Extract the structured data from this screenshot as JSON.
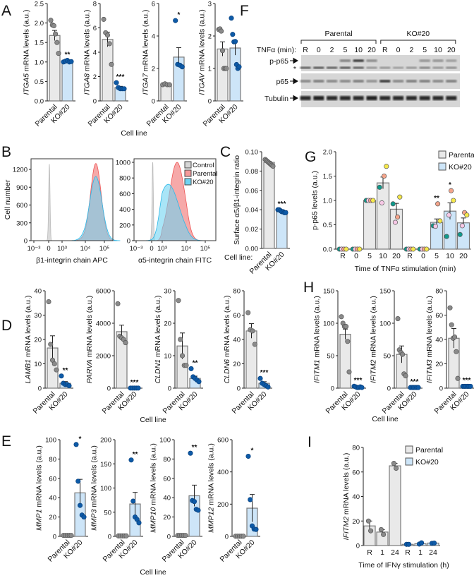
{
  "panels": {
    "A": {
      "letter": "A",
      "xlabel": "Cell line"
    },
    "B": {
      "letter": "B"
    },
    "C": {
      "letter": "C"
    },
    "D": {
      "letter": "D",
      "xlabel": "Cell line"
    },
    "E": {
      "letter": "E",
      "xlabel": "Cell line"
    },
    "F": {
      "letter": "F"
    },
    "G": {
      "letter": "G"
    },
    "H": {
      "letter": "H",
      "xlabel": "Cell line"
    },
    "I": {
      "letter": "I"
    }
  },
  "colors": {
    "parental_bar": "#e9e9e9",
    "ko_bar": "#cde5f8",
    "parental_point": "#8a8a8a",
    "ko_point": "#0d5aa7",
    "hist_control": "#d6d6d6",
    "hist_parental": "#f59a9a",
    "hist_ko": "#6fd3f2"
  },
  "chart_data": [
    {
      "id": "ITGA5",
      "panel": "A",
      "type": "bar",
      "ylabel_gene": "ITGA5",
      "ylabel_rest": " mRNA levels (a.u.)",
      "yticks": [
        "0.0",
        "0.5",
        "1.0",
        "1.5",
        "2.0",
        "2.5"
      ],
      "ylim": [
        0,
        2.5
      ],
      "categories": [
        "Parental",
        "KO#20"
      ],
      "values": [
        1.68,
        1.02
      ],
      "sem": [
        0.13,
        0.01
      ],
      "points": [
        [
          2.07,
          1.95,
          1.93,
          1.72,
          1.5,
          1.22
        ],
        [
          1.0,
          1.02,
          1.04,
          1.0,
          1.01
        ]
      ],
      "significance": [
        "",
        "**"
      ]
    },
    {
      "id": "ITGA8",
      "panel": "A",
      "type": "bar",
      "ylabel_gene": "ITGA8",
      "ylabel_rest": " mRNA levels (a.u.)",
      "yticks": [
        "0",
        "2",
        "4",
        "6",
        "8"
      ],
      "ylim": [
        0,
        8
      ],
      "categories": [
        "Parental",
        "KO#20"
      ],
      "values": [
        5.05,
        1.1
      ],
      "sem": [
        0.6,
        0.1
      ],
      "points": [
        [
          6.7,
          5.6,
          5.4,
          4.7,
          3.0
        ],
        [
          1.5,
          1.1,
          1.0,
          1.0,
          1.0
        ]
      ],
      "significance": [
        "",
        "***"
      ]
    },
    {
      "id": "ITGA7",
      "panel": "A",
      "type": "bar",
      "ylabel_gene": "ITGA7",
      "ylabel_rest": " mRNA levels (a.u.)",
      "yticks": [
        "0",
        "2",
        "4",
        "6"
      ],
      "ylim": [
        0,
        6
      ],
      "categories": [
        "Parental",
        "KO#20"
      ],
      "values": [
        1.0,
        2.7
      ],
      "sem": [
        0.02,
        0.58
      ],
      "points": [
        [
          1.0,
          1.05,
          1.0,
          1.0
        ],
        [
          4.95,
          2.25,
          2.2,
          2.1
        ]
      ],
      "significance": [
        "",
        "*"
      ]
    },
    {
      "id": "ITGAV",
      "panel": "A",
      "type": "bar",
      "ylabel_gene": "ITGAV",
      "ylabel_rest": " mRNA levels (a.u.)",
      "yticks": [
        "0",
        "1",
        "2",
        "3"
      ],
      "ylim": [
        0,
        3
      ],
      "categories": [
        "Parental",
        "KO#20"
      ],
      "values": [
        1.6,
        1.63
      ],
      "sem": [
        0.22,
        0.22
      ],
      "points": [
        [
          2.2,
          2.22,
          2.15,
          1.55,
          1.0,
          1.0,
          1.0
        ],
        [
          2.55,
          2.05,
          1.82,
          1.83,
          1.12,
          1.0,
          1.05
        ]
      ],
      "significance": [
        "",
        ""
      ]
    },
    {
      "id": "C",
      "panel": "C",
      "type": "bar",
      "ylabel_gene": "",
      "ylabel_rest": "Surface α5/β1-integrin ratio",
      "xlabel": "Cell line:",
      "yticks": [
        "0.00",
        "0.02",
        "0.04",
        "0.06",
        "0.08",
        "0.10"
      ],
      "ylim": [
        0,
        0.1
      ],
      "categories": [
        "Parental",
        "KO#20"
      ],
      "values": [
        0.089,
        0.039
      ],
      "sem": [
        0.001,
        0.0005
      ],
      "points": [
        [
          0.092,
          0.091,
          0.09,
          0.089,
          0.088,
          0.087,
          0.086,
          0.085
        ],
        [
          0.04,
          0.04,
          0.039,
          0.038,
          0.038,
          0.037,
          0.037
        ]
      ],
      "significance": [
        "",
        "***"
      ]
    },
    {
      "id": "LAMB1",
      "panel": "D",
      "type": "bar",
      "ylabel_gene": "LAMB1",
      "ylabel_rest": " mRNA levels (a.u.)",
      "yticks": [
        "0",
        "10",
        "20",
        "30",
        "40"
      ],
      "ylim": [
        0,
        40
      ],
      "categories": [
        "Parental",
        "KO#20"
      ],
      "values": [
        16.5,
        2.0
      ],
      "sem": [
        5.0,
        0.7
      ],
      "points": [
        [
          35.5,
          18,
          11.5,
          10,
          7.5
        ],
        [
          5,
          2,
          1.5,
          1.5,
          1
        ]
      ],
      "significance": [
        "",
        "**"
      ]
    },
    {
      "id": "PARVA",
      "panel": "D",
      "type": "bar",
      "ylabel_gene": "PARVA",
      "ylabel_rest": " mRNA levels (a.u.)",
      "yticks": [
        "0",
        "2000",
        "4000",
        "6000"
      ],
      "ylim": [
        0,
        6000
      ],
      "categories": [
        "Parental",
        "KO#20"
      ],
      "values": [
        3480,
        5
      ],
      "sem": [
        400,
        2
      ],
      "points": [
        [
          5200,
          3200,
          3100,
          3000,
          2800
        ],
        [
          5,
          5,
          5,
          5,
          5
        ]
      ],
      "significance": [
        "",
        "***"
      ]
    },
    {
      "id": "CLDN1",
      "panel": "D",
      "type": "bar",
      "ylabel_gene": "CLDN1",
      "ylabel_rest": " mRNA levels (a.u.)",
      "yticks": [
        "0",
        "10",
        "20",
        "30"
      ],
      "ylim": [
        0,
        30
      ],
      "categories": [
        "Parental",
        "KO#20"
      ],
      "values": [
        13,
        3
      ],
      "sem": [
        4,
        0.7
      ],
      "points": [
        [
          27,
          15,
          10,
          7,
          7
        ],
        [
          6,
          3.5,
          3,
          2.5,
          2
        ]
      ],
      "significance": [
        "",
        "**"
      ]
    },
    {
      "id": "CLDN6",
      "panel": "D",
      "type": "bar",
      "ylabel_gene": "CLDN6",
      "ylabel_rest": " mRNA levels (a.u.)",
      "yticks": [
        "0",
        "20",
        "40",
        "60",
        "80"
      ],
      "ylim": [
        0,
        80
      ],
      "categories": [
        "Parental",
        "KO#20"
      ],
      "values": [
        47,
        4
      ],
      "sem": [
        6,
        1.3
      ],
      "points": [
        [
          62,
          48,
          47,
          36
        ],
        [
          8,
          4,
          3,
          2,
          1
        ]
      ],
      "significance": [
        "",
        "***"
      ]
    },
    {
      "id": "MMP1",
      "panel": "E",
      "type": "bar",
      "ylabel_gene": "MMP1",
      "ylabel_rest": " mRNA levels (a.u.)",
      "yticks": [
        "0",
        "20",
        "40",
        "60",
        "80",
        "100"
      ],
      "ylim": [
        0,
        100
      ],
      "categories": [
        "Parental",
        "KO#20"
      ],
      "values": [
        1,
        45
      ],
      "sem": [
        0.1,
        14
      ],
      "points": [
        [
          1,
          1,
          1,
          1,
          1
        ],
        [
          95,
          57,
          32,
          22,
          20
        ]
      ],
      "significance": [
        "",
        "*"
      ]
    },
    {
      "id": "MMP3",
      "panel": "E",
      "type": "bar",
      "ylabel_gene": "MMP3",
      "ylabel_rest": " mRNA levels (a.u.)",
      "yticks": [
        "0",
        "50",
        "100",
        "150",
        "200"
      ],
      "ylim": [
        0,
        200
      ],
      "categories": [
        "Parental",
        "KO#20"
      ],
      "values": [
        1,
        67
      ],
      "sem": [
        0.1,
        24
      ],
      "points": [
        [
          1,
          1,
          1,
          1,
          1
        ],
        [
          158,
          73,
          40,
          35,
          28
        ]
      ],
      "significance": [
        "",
        "**"
      ]
    },
    {
      "id": "MMP10",
      "panel": "E",
      "type": "bar",
      "ylabel_gene": "MMP10",
      "ylabel_rest": " mRNA levels (a.u.)",
      "yticks": [
        "0",
        "20",
        "40",
        "60",
        "80",
        "100"
      ],
      "ylim": [
        0,
        100
      ],
      "categories": [
        "Parental",
        "KO#20"
      ],
      "values": [
        1,
        42
      ],
      "sem": [
        0.1,
        11
      ],
      "points": [
        [
          1,
          1,
          1,
          1,
          1
        ],
        [
          86,
          37,
          36,
          28,
          27
        ]
      ],
      "significance": [
        "",
        "**"
      ]
    },
    {
      "id": "MMP12",
      "panel": "E",
      "type": "bar",
      "ylabel_gene": "MMP12",
      "ylabel_rest": " mRNA levels (a.u.)",
      "yticks": [
        "0",
        "200",
        "400",
        "600"
      ],
      "ylim": [
        0,
        600
      ],
      "categories": [
        "Parental",
        "KO#20"
      ],
      "values": [
        1,
        175
      ],
      "sem": [
        0.2,
        85
      ],
      "points": [
        [
          1,
          1,
          1,
          1,
          1
        ],
        [
          497,
          228,
          65,
          45,
          43
        ]
      ],
      "significance": [
        "",
        "*"
      ]
    },
    {
      "id": "IFITM1",
      "panel": "H",
      "type": "bar",
      "ylabel_gene": "IFITM1",
      "ylabel_rest": " mRNA levels (a.u.)",
      "yticks": [
        "0",
        "50",
        "100",
        "150"
      ],
      "ylim": [
        0,
        150
      ],
      "categories": [
        "Parental",
        "KO#20"
      ],
      "values": [
        83,
        2
      ],
      "sem": [
        8,
        0.4
      ],
      "points": [
        [
          110,
          100,
          95,
          95,
          72,
          25
        ],
        [
          3,
          2,
          1,
          1,
          2,
          1
        ]
      ],
      "significance": [
        "",
        "***"
      ]
    },
    {
      "id": "IFITM2",
      "panel": "H",
      "type": "bar",
      "ylabel_gene": "IFITM2",
      "ylabel_rest": " mRNA levels (a.u.)",
      "yticks": [
        "0",
        "50",
        "100",
        "150"
      ],
      "ylim": [
        0,
        150
      ],
      "categories": [
        "Parental",
        "KO#20"
      ],
      "values": [
        52,
        1
      ],
      "sem": [
        13,
        0.2
      ],
      "points": [
        [
          107,
          59,
          55,
          52,
          22,
          19
        ],
        [
          1,
          1,
          1,
          1,
          1,
          1
        ]
      ],
      "significance": [
        "",
        "***"
      ]
    },
    {
      "id": "IFITM3",
      "panel": "H",
      "type": "bar",
      "ylabel_gene": "IFITM3",
      "ylabel_rest": " mRNA levels (a.u.)",
      "yticks": [
        "0",
        "20",
        "40",
        "60",
        "80"
      ],
      "ylim": [
        0,
        80
      ],
      "categories": [
        "Parental",
        "KO#20"
      ],
      "values": [
        41,
        1.5
      ],
      "sem": [
        8,
        0.2
      ],
      "points": [
        [
          66,
          52,
          41,
          42,
          30,
          8
        ],
        [
          1.5,
          1.5,
          1.5,
          1.5,
          1.5,
          1.5
        ]
      ],
      "significance": [
        "",
        "***"
      ]
    },
    {
      "id": "G",
      "panel": "G",
      "type": "grouped_bar",
      "ylabel": "p-p65 levels (a.u.)",
      "xlabel": "Time of TNFα stimulation (min)",
      "yticks": [
        "0.0",
        "0.5",
        "1.0",
        "1.5",
        "2.0"
      ],
      "ylim": [
        0,
        2
      ],
      "replicate_colors": [
        "#109a8c",
        "#f7c8e6",
        "#f4a48a",
        "#f5e84a"
      ],
      "groups": [
        {
          "name": "Parental",
          "categories": [
            "R",
            "0",
            "5",
            "10",
            "20"
          ],
          "values": [
            0,
            0,
            1.0,
            1.36,
            0.82
          ],
          "sem": [
            0,
            0,
            0,
            0.12,
            0.12
          ],
          "points": [
            [
              0,
              0,
              0,
              0
            ],
            [
              0,
              0,
              0,
              0
            ],
            [
              1,
              1,
              1,
              1
            ],
            [
              1.27,
              0.95,
              1.5,
              1.7
            ],
            [
              0.93,
              0.55,
              0.66,
              1.07
            ]
          ],
          "significance": [
            "",
            "",
            "",
            "",
            ""
          ]
        },
        {
          "name": "KO#20",
          "categories": [
            "R",
            "0",
            "5",
            "10",
            "20"
          ],
          "values": [
            0,
            0,
            0.55,
            0.78,
            0.54
          ],
          "sem": [
            0,
            0,
            0.07,
            0.17,
            0.1
          ],
          "points": [
            [
              0,
              0,
              0,
              0
            ],
            [
              0,
              0,
              0,
              0
            ],
            [
              0.48,
              0.47,
              0.93,
              0.58
            ],
            [
              0.26,
              0.7,
              1.2,
              1.0
            ],
            [
              0.3,
              0.48,
              0.75,
              0.7
            ]
          ],
          "significance": [
            "",
            "",
            "**",
            "*",
            ""
          ]
        }
      ]
    },
    {
      "id": "I",
      "panel": "I",
      "type": "grouped_bar",
      "ylabel_gene": "IFITM2",
      "ylabel_rest": " mRNA levels (a.u.)",
      "xlabel": "Time of IFNγ stimulation (h)",
      "yticks": [
        "0",
        "20",
        "40",
        "60",
        "80"
      ],
      "ylim": [
        0,
        80
      ],
      "groups": [
        {
          "name": "Parental",
          "categories": [
            "R",
            "1",
            "24"
          ],
          "values": [
            16,
            11,
            65
          ],
          "sem": [
            4,
            2,
            2
          ],
          "points": [
            [
              20,
              12
            ],
            [
              13,
              9
            ],
            [
              67,
              63
            ]
          ],
          "significance": [
            "",
            "",
            ""
          ]
        },
        {
          "name": "KO#20",
          "categories": [
            "R",
            "1",
            "24"
          ],
          "values": [
            1,
            1.5,
            2
          ],
          "sem": [
            0.1,
            0.4,
            0.2
          ],
          "points": [
            [
              1,
              1
            ],
            [
              1.2,
              2.2
            ],
            [
              1.8,
              2
            ]
          ],
          "significance": [
            "",
            "",
            ""
          ]
        }
      ]
    },
    {
      "id": "B1",
      "panel": "B",
      "type": "area",
      "ylabel": "Cell number",
      "xlabel": "β1-integrin chain APC",
      "yticks": [
        "0",
        "300",
        "600",
        "900",
        "1200"
      ],
      "ylim": [
        0,
        1300
      ],
      "xticks": [
        "10⁻³",
        "0",
        "10³",
        "10⁴",
        "10⁵"
      ],
      "xtick_values": [
        -1,
        0,
        1,
        2,
        3
      ],
      "series": [
        {
          "name": "Control",
          "center": 0.05,
          "sd": 0.05,
          "peak": 1290
        },
        {
          "name": "Parental",
          "center": 2.55,
          "sd": 0.28,
          "peak": 1300
        },
        {
          "name": "KO#20",
          "center": 2.55,
          "sd": 0.32,
          "peak": 1080
        }
      ]
    },
    {
      "id": "B2",
      "panel": "B",
      "type": "area",
      "ylabel": "",
      "xlabel": "α5-integrin chain FITC",
      "yticks": [
        "0",
        "200",
        "400",
        "600",
        "800",
        "1000"
      ],
      "ylim": [
        0,
        1050
      ],
      "xticks": [
        "10⁻³",
        "0",
        "10³",
        "10⁴",
        "10⁵"
      ],
      "xtick_values": [
        -1,
        0,
        1,
        2,
        3
      ],
      "legend": [
        "Control",
        "Parental",
        "KO#20"
      ],
      "series": [
        {
          "name": "Control",
          "center": 0.1,
          "sd": 0.06,
          "peak": 1000
        },
        {
          "name": "Parental",
          "center": 1.62,
          "sd": 0.32,
          "peak": 1000
        },
        {
          "name": "KO#20",
          "center": 1.25,
          "sd": 0.45,
          "peak": 720
        }
      ]
    }
  ],
  "western_blot": {
    "groups": [
      "Parental",
      "KO#20"
    ],
    "time_label": "TNFα (min):",
    "lanes": [
      "R",
      "0",
      "2",
      "5",
      "10",
      "20",
      "R",
      "0",
      "2",
      "5",
      "10",
      "20"
    ],
    "rows": [
      {
        "label": "p-p65",
        "intensities": [
          0,
          0,
          0,
          0.5,
          0.9,
          0.45,
          0,
          0,
          0,
          0.4,
          0.4,
          0.3
        ]
      },
      {
        "label": "*",
        "intensities": [
          0.7,
          0.75,
          0.7,
          0.75,
          0.7,
          0.35,
          0.35,
          0.3,
          0.35,
          0.5,
          0.4,
          0.45
        ]
      },
      {
        "label": "p65",
        "intensities": [
          0.45,
          0.5,
          0.45,
          0.45,
          0.5,
          0.4,
          0.85,
          0.45,
          0.5,
          0.5,
          0.45,
          0.5
        ]
      },
      {
        "label": "Tubulin",
        "intensities": [
          0.95,
          1,
          0.95,
          0.95,
          0.95,
          1,
          0.95,
          0.95,
          0.95,
          0.95,
          0.95,
          0.95
        ]
      }
    ]
  }
}
